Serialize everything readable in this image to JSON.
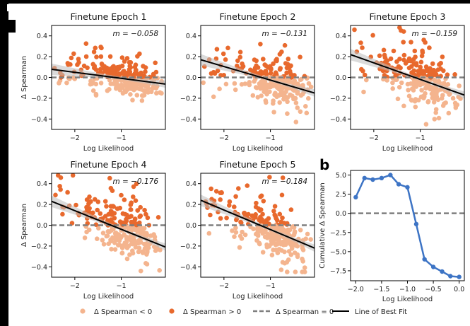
{
  "panel_b_letter": "b",
  "legend": [
    {
      "label": "Δ Spearman < 0",
      "kind": "dot",
      "color": "#f4b48e"
    },
    {
      "label": "Δ Spearman > 0",
      "kind": "dot",
      "color": "#e8692d"
    },
    {
      "label": "Δ Spearman = 0",
      "kind": "dash",
      "color": "#7f7f7f"
    },
    {
      "label": "Line of Best Fit",
      "kind": "line",
      "color": "#000000"
    }
  ],
  "colors": {
    "neg": "#f4b48e",
    "pos": "#e8692d",
    "zero_line": "#7f7f7f",
    "fit": "#000000",
    "band": "#bdbdbd",
    "cumulative": "#3d74c5"
  },
  "chart_data": [
    {
      "type": "scatter",
      "title": "Finetune Epoch 1",
      "slope_label": "m = −0.058",
      "xlabel": "Log Likelihood",
      "ylabel": "Δ Spearman",
      "xlim": [
        -2.5,
        -0.05
      ],
      "ylim": [
        -0.5,
        0.5
      ],
      "xticks": [
        -2,
        -1
      ],
      "yticks": [
        -0.4,
        -0.2,
        0.0,
        0.2,
        0.4
      ],
      "show_x_ticklabels": true,
      "show_y_ticklabels": true,
      "fit": {
        "x": [
          -2.5,
          -0.05
        ],
        "y": [
          0.078,
          -0.064
        ]
      },
      "seed": 11,
      "spread": 0.6,
      "y_offset": 0
    },
    {
      "type": "scatter",
      "title": "Finetune Epoch 2",
      "slope_label": "m = −0.131",
      "xlabel": "Log Likelihood",
      "ylabel": "",
      "xlim": [
        -2.5,
        -0.05
      ],
      "ylim": [
        -0.5,
        0.5
      ],
      "xticks": [
        -2,
        -1
      ],
      "yticks": [
        -0.4,
        -0.2,
        0.0,
        0.2,
        0.4
      ],
      "show_x_ticklabels": true,
      "show_y_ticklabels": true,
      "fit": {
        "x": [
          -2.5,
          -0.05
        ],
        "y": [
          0.17,
          -0.15
        ]
      },
      "seed": 23,
      "spread": 1.0,
      "y_offset": 0
    },
    {
      "type": "scatter",
      "title": "Finetune Epoch 3",
      "slope_label": "m = −0.159",
      "xlabel": "Log Likelihood",
      "ylabel": "",
      "xlim": [
        -2.5,
        -0.05
      ],
      "ylim": [
        -0.5,
        0.5
      ],
      "xticks": [
        -2,
        -1
      ],
      "yticks": [
        -0.4,
        -0.2,
        0.0,
        0.2,
        0.4
      ],
      "show_x_ticklabels": true,
      "show_y_ticklabels": true,
      "fit": {
        "x": [
          -2.5,
          -0.05
        ],
        "y": [
          0.22,
          -0.17
        ]
      },
      "seed": 37,
      "spread": 1.15,
      "y_offset": 0
    },
    {
      "type": "scatter",
      "title": "Finetune Epoch 4",
      "slope_label": "m = −0.176",
      "xlabel": "Log Likelihood",
      "ylabel": "Δ Spearman",
      "xlim": [
        -2.5,
        -0.05
      ],
      "ylim": [
        -0.5,
        0.5
      ],
      "xticks": [
        -2,
        -1
      ],
      "yticks": [
        -0.4,
        -0.2,
        0.0,
        0.2,
        0.4
      ],
      "show_x_ticklabels": true,
      "show_y_ticklabels": true,
      "fit": {
        "x": [
          -2.5,
          -0.05
        ],
        "y": [
          0.23,
          -0.21
        ]
      },
      "seed": 41,
      "spread": 1.2,
      "y_offset": 0
    },
    {
      "type": "scatter",
      "title": "Finetune Epoch 5",
      "slope_label": "m = −0.184",
      "xlabel": "Log Likelihood",
      "ylabel": "",
      "xlim": [
        -2.5,
        -0.05
      ],
      "ylim": [
        -0.5,
        0.5
      ],
      "xticks": [
        -2,
        -1
      ],
      "yticks": [
        -0.4,
        -0.2,
        0.0,
        0.2,
        0.4
      ],
      "show_x_ticklabels": true,
      "show_y_ticklabels": true,
      "fit": {
        "x": [
          -2.5,
          -0.05
        ],
        "y": [
          0.24,
          -0.22
        ]
      },
      "seed": 53,
      "spread": 1.25,
      "y_offset": 0
    },
    {
      "type": "line",
      "title": "",
      "xlabel": "Log Likelihood",
      "ylabel": "Cumulative Δ Spearman",
      "xlim": [
        -2.1,
        0.1
      ],
      "ylim": [
        -8.8,
        5.6
      ],
      "xticks": [
        -2.0,
        -1.5,
        -1.0,
        -0.5,
        0.0
      ],
      "xticklabels": [
        "−2.0",
        "−1.5",
        "−1.0",
        "−0.5",
        "0.0"
      ],
      "yticks": [
        -7.5,
        -5.0,
        -2.5,
        0.0,
        2.5,
        5.0
      ],
      "yticklabels": [
        "−7.5",
        "−5.0",
        "−2.5",
        "0.0",
        "2.5",
        "5.0"
      ],
      "x": [
        -2.0,
        -1.83,
        -1.67,
        -1.5,
        -1.33,
        -1.17,
        -1.0,
        -0.83,
        -0.67,
        -0.5,
        -0.33,
        -0.17,
        0.0
      ],
      "y": [
        2.1,
        4.6,
        4.4,
        4.6,
        5.0,
        3.8,
        3.4,
        -1.4,
        -6.0,
        -7.0,
        -7.6,
        -8.2,
        -8.3
      ]
    }
  ]
}
